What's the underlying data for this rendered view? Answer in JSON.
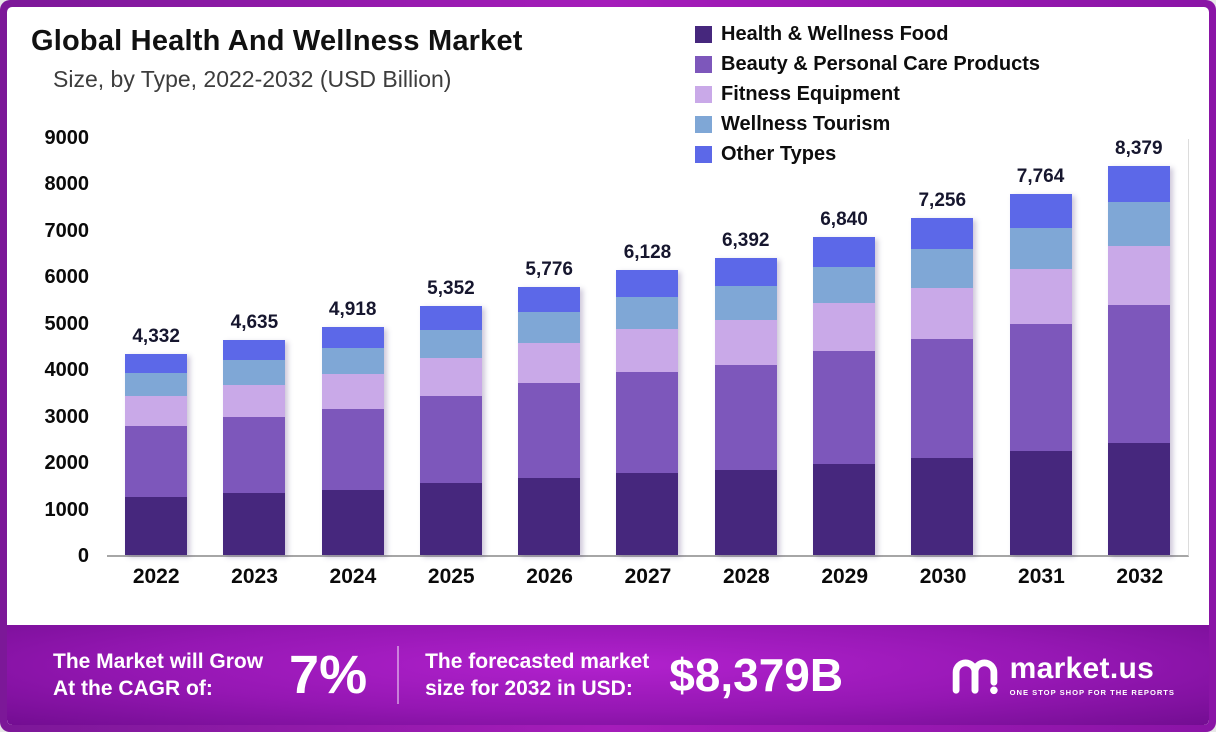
{
  "header": {
    "title": "Global Health And Wellness Market",
    "subtitle": "Size, by Type, 2022-2032 (USD Billion)"
  },
  "chart_data": {
    "type": "bar",
    "stacked": true,
    "title": "Global Health And Wellness Market Size, by Type, 2022-2032 (USD Billion)",
    "categories": [
      "2022",
      "2023",
      "2024",
      "2025",
      "2026",
      "2027",
      "2028",
      "2029",
      "2030",
      "2031",
      "2032"
    ],
    "series": [
      {
        "name": "Health & Wellness Food",
        "color": "#46277d",
        "values": [
          1250,
          1330,
          1410,
          1540,
          1660,
          1760,
          1840,
          1970,
          2090,
          2240,
          2420
        ]
      },
      {
        "name": "Beauty & Personal Care Products",
        "color": "#7d57bb",
        "values": [
          1530,
          1640,
          1740,
          1890,
          2040,
          2170,
          2260,
          2420,
          2570,
          2740,
          2960
        ]
      },
      {
        "name": "Fitness Equipment",
        "color": "#c9a9e8",
        "values": [
          650,
          700,
          740,
          810,
          870,
          930,
          970,
          1040,
          1100,
          1180,
          1270
        ]
      },
      {
        "name": "Wellness Tourism",
        "color": "#7fa7d6",
        "values": [
          500,
          530,
          565,
          610,
          660,
          700,
          730,
          780,
          830,
          890,
          960
        ]
      },
      {
        "name": "Other Types",
        "color": "#5c68e8",
        "values": [
          402,
          435,
          463,
          502,
          546,
          568,
          592,
          630,
          666,
          714,
          769
        ]
      }
    ],
    "totals_formatted": [
      "4,332",
      "4,635",
      "4,918",
      "5,352",
      "5,776",
      "6,128",
      "6,392",
      "6,840",
      "7,256",
      "7,764",
      "8,379"
    ],
    "ylim": [
      0,
      9000
    ],
    "yticks": [
      0,
      1000,
      2000,
      3000,
      4000,
      5000,
      6000,
      7000,
      8000,
      9000
    ],
    "legend_position": "top-right",
    "grid": false
  },
  "footer": {
    "cagr_line1": "The Market will Grow",
    "cagr_line2": "At the CAGR of:",
    "cagr_value": "7%",
    "forecast_line1": "The forecasted market",
    "forecast_line2": "size for 2032 in USD:",
    "forecast_value": "$8,379B",
    "brand": "market.us",
    "brand_tagline": "ONE STOP SHOP FOR THE REPORTS"
  }
}
